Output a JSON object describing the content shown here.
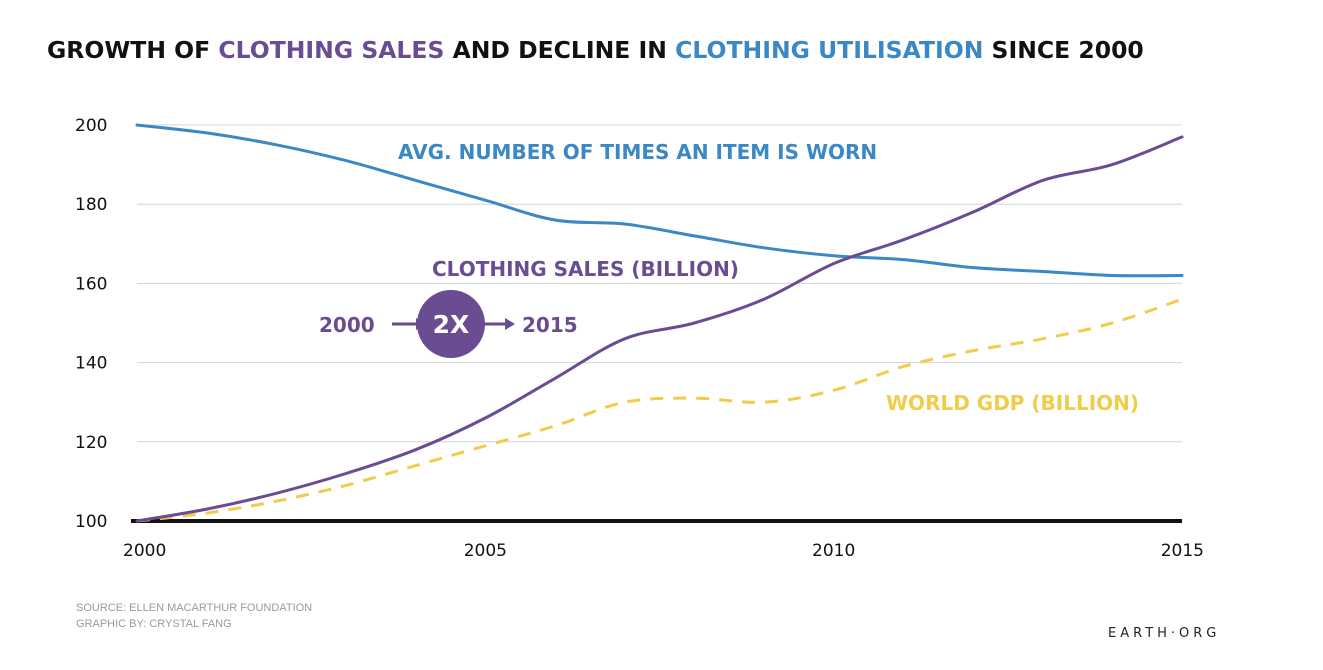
{
  "colors": {
    "black": "#111111",
    "purple": "#6a4c93",
    "blue": "#3b88c4",
    "yellow": "#f0cc4a",
    "grid": "#d4d4d4"
  },
  "chart_data": {
    "type": "line",
    "title_parts": [
      {
        "text": "GROWTH OF ",
        "color": "black"
      },
      {
        "text": "CLOTHING SALES",
        "color": "purple"
      },
      {
        "text": " AND DECLINE IN ",
        "color": "black"
      },
      {
        "text": "CLOTHING UTILISATION",
        "color": "blue"
      },
      {
        "text": " SINCE 2000",
        "color": "black"
      }
    ],
    "xlabel": "",
    "ylabel": "",
    "xlim": [
      2000,
      2015
    ],
    "ylim": [
      100,
      200
    ],
    "x_ticks": [
      2000,
      2005,
      2010,
      2015
    ],
    "y_ticks": [
      100,
      120,
      140,
      160,
      180,
      200
    ],
    "grid": true,
    "series": [
      {
        "name": "AVG. NUMBER OF TIMES AN ITEM IS WORN",
        "color": "blue",
        "dashed": false,
        "x": [
          2000,
          2001,
          2002,
          2003,
          2004,
          2005,
          2006,
          2007,
          2008,
          2009,
          2010,
          2011,
          2012,
          2013,
          2014,
          2015
        ],
        "y": [
          200,
          198,
          195,
          191,
          186,
          181,
          176,
          175,
          172,
          169,
          167,
          166,
          164,
          163,
          162,
          162
        ]
      },
      {
        "name": "CLOTHING SALES (BILLION)",
        "color": "purple",
        "dashed": false,
        "x": [
          2000,
          2001,
          2002,
          2003,
          2004,
          2005,
          2006,
          2007,
          2008,
          2009,
          2010,
          2011,
          2012,
          2013,
          2014,
          2015
        ],
        "y": [
          100,
          103,
          107,
          112,
          118,
          126,
          136,
          146,
          150,
          156,
          165,
          171,
          178,
          186,
          190,
          197
        ]
      },
      {
        "name": "WORLD GDP (BILLION)",
        "color": "yellow",
        "dashed": true,
        "x": [
          2000,
          2001,
          2002,
          2003,
          2004,
          2005,
          2006,
          2007,
          2008,
          2009,
          2010,
          2011,
          2012,
          2013,
          2014,
          2015
        ],
        "y": [
          100,
          102,
          105,
          109,
          114,
          119,
          124,
          130,
          131,
          130,
          133,
          139,
          143,
          146,
          150,
          156
        ]
      }
    ],
    "annotation": {
      "left": "2000",
      "badge": "2X",
      "right": "2015"
    }
  },
  "footer": {
    "source": "SOURCE: ELLEN MACARTHUR FOUNDATION",
    "graphic": "GRAPHIC BY: CRYSTAL FANG",
    "brand": "EARTH·ORG"
  }
}
